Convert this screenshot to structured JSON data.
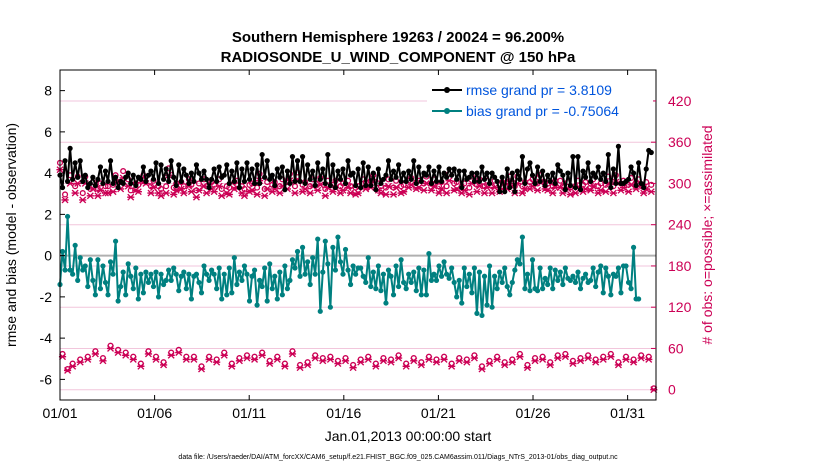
{
  "chart_data": {
    "type": "line",
    "title": "Southern Hemisphere 19263 / 20024 = 96.200%",
    "subtitle": "RADIOSONDE_U_WIND_COMPONENT @ 150 hPa",
    "xlabel": "Jan.01,2013 00:00:00 start",
    "ylabel": "rmse and bias (model - observation)",
    "y2label": "# of obs: o=possible; ×=assimilated",
    "footer": "data file: /Users/raeder/DAI/ATM_forcXX/CAM6_setup/f.e21.FHIST_BGC.f09_025.CAM6assim.011/Diags_NTrS_2013-01/obs_diag_output.nc",
    "xlim": [
      0,
      31.5
    ],
    "ylim": [
      -7,
      9
    ],
    "y2lim": [
      -15,
      465
    ],
    "x_tick_labels": [
      "01/01",
      "01/06",
      "01/11",
      "01/16",
      "01/21",
      "01/26",
      "01/31"
    ],
    "x_tick_values": [
      0,
      5,
      10,
      15,
      20,
      25,
      30
    ],
    "y_ticks": [
      -6,
      -4,
      -2,
      0,
      2,
      4,
      6,
      8
    ],
    "y2_ticks": [
      0,
      60,
      120,
      180,
      240,
      300,
      360,
      420
    ],
    "colors": {
      "rmse": "#000000",
      "bias": "#008080",
      "obs": "#cc0055",
      "zero_line": "#b0b0b0",
      "legend_text": "#0055dd",
      "grid": "#f2c6dc"
    },
    "legend": [
      {
        "name": "rmse grand pr = 3.8109",
        "series": "rmse"
      },
      {
        "name": "bias grand pr = -0.75064",
        "series": "bias"
      }
    ],
    "series": [
      {
        "name": "rmse",
        "values": [
          3.9,
          3.3,
          4.6,
          3.6,
          5.2,
          3.7,
          4.5,
          3.8,
          4.6,
          3.6,
          3.9,
          3.3,
          3.5,
          3.8,
          3.4,
          3.7,
          4.3,
          3.5,
          4.1,
          3.6,
          4.6,
          3.5,
          3.8,
          3.3,
          3.6,
          3.5,
          3.8,
          4.0,
          3.5,
          3.9,
          3.4,
          3.8,
          3.7,
          4.3,
          3.6,
          3.9,
          4.1,
          3.7,
          4.5,
          3.5,
          4.4,
          3.7,
          4.2,
          3.6,
          4.6,
          3.8,
          3.4,
          4.4,
          3.6,
          4.2,
          3.9,
          3.5,
          4.0,
          3.6,
          4.4,
          4.0,
          3.7,
          4.1,
          3.7,
          3.3,
          3.7,
          4.2,
          3.6,
          4.3,
          3.8,
          3.9,
          4.4,
          3.5,
          4.1,
          3.6,
          4.5,
          3.3,
          4.2,
          3.6,
          4.5,
          3.7,
          4.2,
          3.5,
          4.4,
          3.5,
          4.9,
          3.8,
          4.6,
          3.7,
          3.9,
          3.4,
          4.2,
          3.8,
          4.3,
          3.2,
          4.1,
          3.5,
          4.8,
          3.6,
          4.6,
          3.6,
          4.8,
          3.5,
          4.4,
          3.7,
          4.1,
          3.4,
          4.5,
          3.7,
          4.2,
          3.5,
          4.9,
          3.4,
          4.4,
          3.3,
          4.1,
          3.7,
          4.2,
          3.5,
          4.6,
          3.9,
          4.0,
          3.4,
          4.2,
          3.3,
          4.5,
          3.4,
          4.3,
          3.4,
          4.0,
          3.2,
          4.2,
          3.5,
          3.7,
          3.9,
          4.6,
          3.7,
          4.1,
          3.8,
          4.4,
          3.6,
          4.0,
          3.6,
          4.1,
          3.7,
          4.6,
          3.5,
          4.3,
          3.6,
          4.0,
          3.9,
          4.3,
          3.5,
          4.1,
          3.6,
          4.3,
          3.6,
          4.0,
          3.8,
          4.2,
          3.9,
          4.2,
          3.7,
          4.1,
          3.3,
          4.1,
          3.7,
          3.8,
          4.0,
          3.6,
          4.0,
          3.6,
          4.3,
          3.7,
          4.0,
          3.5,
          4.0,
          3.8,
          3.6,
          3.1,
          3.8,
          3.1,
          4.2,
          3.3,
          4.0,
          3.1,
          4.1,
          3.7,
          4.8,
          3.5,
          4.2,
          4.5,
          3.9,
          3.5,
          4.3,
          3.6,
          4.1,
          3.4,
          3.9,
          3.6,
          4.0,
          3.5,
          4.4,
          4.1,
          3.9,
          3.2,
          4.0,
          3.4,
          4.8,
          3.3,
          4.8,
          3.2,
          4.1,
          3.8,
          4.5,
          3.6,
          4.0,
          3.8,
          4.3,
          3.7,
          4.0,
          3.6,
          4.9,
          3.3,
          4.2,
          3.5,
          5.3,
          3.5,
          3.5,
          3.6,
          3.7,
          4.3,
          4.0,
          3.4,
          4.5,
          3.5,
          3.3,
          4.2,
          5.1,
          5.0
        ]
      },
      {
        "name": "bias",
        "values": [
          -1.4,
          0.2,
          -0.7,
          1.9,
          -0.7,
          -0.9,
          0.5,
          -1.2,
          -0.1,
          -0.7,
          -0.5,
          -1.5,
          -0.2,
          -1.2,
          -1.9,
          -0.2,
          -1.6,
          -0.5,
          -1.3,
          -1.9,
          -0.3,
          -0.9,
          0.7,
          -2.2,
          -1.5,
          -0.8,
          -1.9,
          -0.4,
          -1.0,
          -1.6,
          -0.6,
          -2.1,
          -0.9,
          -1.8,
          -0.8,
          -1.3,
          -0.9,
          -1.5,
          -0.8,
          -2.0,
          -0.9,
          -1.4,
          -1.2,
          -0.7,
          -1.2,
          -0.6,
          -0.9,
          -1.7,
          -1.0,
          -0.8,
          -1.6,
          -0.9,
          -2.1,
          -1.0,
          -0.9,
          -1.3,
          -1.8,
          -0.5,
          -0.9,
          -1.2,
          -0.7,
          -0.9,
          -1.6,
          -0.6,
          -2.1,
          -0.9,
          -1.9,
          -0.6,
          -1.8,
          -0.1,
          -1.4,
          -0.8,
          -1.2,
          -0.5,
          -0.9,
          -2.2,
          -1.0,
          -0.7,
          -2.4,
          -1.2,
          -1.5,
          -0.6,
          -2.2,
          -0.4,
          -1.6,
          -1.0,
          -2.1,
          -0.8,
          -1.9,
          -0.5,
          -1.6,
          -1.2,
          -0.2,
          -0.6,
          0.2,
          -1.0,
          0.4,
          -0.9,
          -0.3,
          -1.4,
          -0.1,
          -0.9,
          0.8,
          -2.7,
          -0.8,
          0.7,
          -0.4,
          -2.5,
          0.4,
          -0.7,
          0.9,
          -0.3,
          -0.9,
          0.3,
          -0.7,
          -1.4,
          -0.5,
          -0.9,
          -0.6,
          -0.6,
          -1.0,
          -1.3,
          -0.1,
          -1.5,
          -0.8,
          -1.6,
          -0.5,
          -1.7,
          -0.9,
          -2.3,
          -0.7,
          -1.0,
          -1.9,
          -0.5,
          -1.5,
          -0.2,
          -1.3,
          -1.6,
          -0.9,
          -1.3,
          -0.8,
          -1.7,
          -0.6,
          -1.9,
          -0.7,
          -1.9,
          0.1,
          -1.2,
          -0.9,
          -1.2,
          -0.5,
          -1.0,
          -0.3,
          -0.9,
          -1.1,
          -0.6,
          -1.3,
          -2.0,
          -1.2,
          -2.3,
          -0.6,
          -1.5,
          -0.9,
          -1.8,
          -0.6,
          -2.8,
          -0.8,
          -2.9,
          -1.0,
          -2.4,
          -0.5,
          -2.5,
          -1.0,
          -1.6,
          -0.8,
          -1.3,
          -0.6,
          -1.5,
          -1.9,
          -1.3,
          -0.7,
          -0.2,
          -0.4,
          0.9,
          -1.6,
          -0.9,
          -1.7,
          -0.2,
          -1.6,
          -1.7,
          -0.6,
          -1.6,
          -1.1,
          -1.4,
          -0.6,
          -1.6,
          -0.7,
          -1.2,
          -0.8,
          -1.4,
          -0.6,
          -1.1,
          -1.2,
          -1.0,
          -1.3,
          -0.8,
          -1.6,
          -1.1,
          -0.9,
          -1.3,
          -1.2,
          -0.6,
          -1.5,
          -0.8,
          -0.5,
          -1.8,
          -0.6,
          -1.0,
          -1.9,
          -0.9,
          -1.0,
          -0.6,
          -1.8,
          -0.5,
          -0.5,
          -1.3,
          -1.6,
          0.4,
          -2.1,
          -2.1
        ]
      },
      {
        "name": "possible",
        "axis": "y2",
        "values": [
          330,
          52,
          284,
          30,
          312,
          38,
          296,
          310,
          44,
          286,
          310,
          48,
          292,
          302,
          56,
          292,
          300,
          46,
          296,
          296,
          64,
          298,
          312,
          58,
          302,
          318,
          54,
          306,
          290,
          48,
          300,
          298,
          38,
          312,
          310,
          56,
          296,
          304,
          48,
          296,
          292,
          40,
          296,
          322,
          54,
          294,
          300,
          58,
          302,
          296,
          48,
          306,
          298,
          48,
          290,
          300,
          34,
          306,
          296,
          48,
          302,
          298,
          44,
          306,
          292,
          54,
          296,
          294,
          38,
          302,
          304,
          46,
          296,
          292,
          50,
          298,
          300,
          48,
          294,
          314,
          54,
          292,
          302,
          42,
          298,
          302,
          48,
          296,
          306,
          38,
          302,
          314,
          56,
          296,
          316,
          36,
          298,
          302,
          40,
          296,
          306,
          50,
          300,
          308,
          46,
          292,
          304,
          48,
          298,
          304,
          42,
          296,
          300,
          46,
          304,
          296,
          36,
          294,
          296,
          44,
          306,
          302,
          48,
          304,
          312,
          38,
          300,
          296,
          46,
          294,
          306,
          44,
          294,
          304,
          50,
          296,
          298,
          38,
          304,
          308,
          46,
          302,
          304,
          40,
          300,
          310,
          48,
          300,
          306,
          44,
          296,
          302,
          48,
          296,
          314,
          38,
          300,
          302,
          46,
          296,
          300,
          44,
          294,
          310,
          50,
          298,
          306,
          34,
          296,
          304,
          42,
          296,
          304,
          48,
          298,
          302,
          40,
          302,
          310,
          44,
          296,
          310,
          52,
          296,
          302,
          36,
          302,
          306,
          46,
          300,
          312,
          48,
          302,
          300,
          40,
          296,
          304,
          50,
          304,
          296,
          52,
          302,
          294,
          42,
          296,
          304,
          46,
          298,
          302,
          50,
          300,
          306,
          44,
          296,
          300,
          48,
          298,
          310,
          52,
          296,
          312,
          40,
          300,
          304,
          48,
          298,
          308,
          44,
          302,
          306,
          50,
          296,
          302,
          48,
          298,
          2
        ]
      },
      {
        "name": "assimilated",
        "axis": "y2",
        "values": [
          320,
          48,
          276,
          28,
          300,
          34,
          286,
          300,
          40,
          276,
          300,
          44,
          282,
          292,
          52,
          282,
          290,
          42,
          286,
          286,
          60,
          288,
          302,
          54,
          292,
          308,
          50,
          296,
          280,
          44,
          290,
          288,
          34,
          302,
          300,
          52,
          286,
          294,
          44,
          286,
          282,
          36,
          286,
          312,
          50,
          284,
          290,
          54,
          292,
          286,
          44,
          296,
          288,
          44,
          280,
          290,
          30,
          296,
          286,
          44,
          292,
          288,
          40,
          296,
          282,
          50,
          286,
          284,
          34,
          292,
          294,
          42,
          286,
          282,
          46,
          288,
          290,
          44,
          284,
          304,
          50,
          282,
          292,
          38,
          288,
          292,
          44,
          286,
          296,
          34,
          292,
          304,
          52,
          286,
          306,
          32,
          288,
          292,
          36,
          286,
          296,
          46,
          290,
          298,
          42,
          282,
          294,
          44,
          288,
          294,
          38,
          286,
          290,
          42,
          294,
          286,
          32,
          284,
          286,
          40,
          296,
          292,
          44,
          294,
          302,
          34,
          290,
          286,
          42,
          284,
          296,
          40,
          284,
          294,
          46,
          286,
          288,
          34,
          294,
          298,
          42,
          292,
          294,
          36,
          290,
          300,
          44,
          290,
          296,
          40,
          286,
          292,
          44,
          286,
          304,
          34,
          290,
          292,
          42,
          286,
          290,
          40,
          284,
          300,
          46,
          288,
          296,
          30,
          286,
          294,
          38,
          286,
          294,
          44,
          288,
          292,
          36,
          292,
          300,
          40,
          286,
          300,
          48,
          286,
          292,
          32,
          292,
          296,
          42,
          290,
          302,
          44,
          292,
          290,
          36,
          286,
          294,
          46,
          294,
          286,
          48,
          292,
          284,
          38,
          286,
          294,
          42,
          288,
          292,
          46,
          290,
          296,
          40,
          286,
          290,
          44,
          288,
          300,
          48,
          286,
          302,
          36,
          290,
          294,
          44,
          288,
          298,
          40,
          292,
          296,
          46,
          286,
          292,
          44,
          288,
          0
        ]
      }
    ]
  }
}
